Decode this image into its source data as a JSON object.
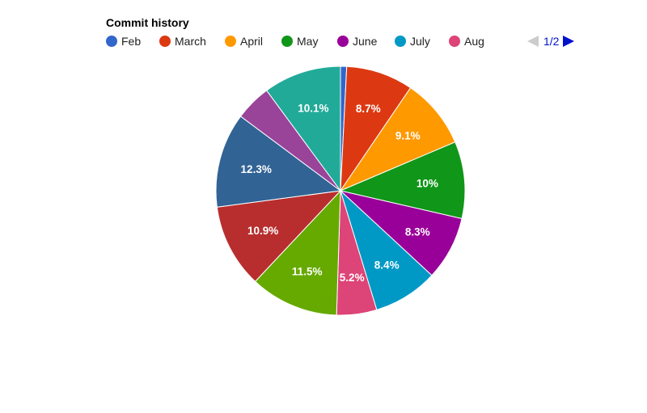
{
  "chart_data": {
    "type": "pie",
    "title": "Commit history",
    "legend": {
      "position": "top",
      "page": "1/2",
      "visible_entries": [
        "Feb",
        "March",
        "April",
        "May",
        "June",
        "July",
        "Aug"
      ]
    },
    "slices": [
      {
        "name": "Feb",
        "value": 0.8,
        "label": "",
        "color": "#3366cc"
      },
      {
        "name": "March",
        "value": 8.7,
        "label": "8.7%",
        "color": "#dc3912"
      },
      {
        "name": "April",
        "value": 9.1,
        "label": "9.1%",
        "color": "#ff9900"
      },
      {
        "name": "May",
        "value": 10.0,
        "label": "10%",
        "color": "#109618"
      },
      {
        "name": "June",
        "value": 8.3,
        "label": "8.3%",
        "color": "#990099"
      },
      {
        "name": "July",
        "value": 8.4,
        "label": "8.4%",
        "color": "#0099c6"
      },
      {
        "name": "Aug",
        "value": 5.2,
        "label": "5.2%",
        "color": "#dd4477"
      },
      {
        "value": 11.5,
        "label": "11.5%",
        "color": "#66aa00"
      },
      {
        "value": 10.9,
        "label": "10.9%",
        "color": "#b82e2e"
      },
      {
        "value": 12.3,
        "label": "12.3%",
        "color": "#316395"
      },
      {
        "value": 4.7,
        "label": "",
        "color": "#994499"
      },
      {
        "value": 10.1,
        "label": "10.1%",
        "color": "#22aa99"
      }
    ]
  },
  "pager": {
    "prev_color": "#cccccc",
    "next_color": "#0011cc",
    "text_color": "#0011cc"
  }
}
